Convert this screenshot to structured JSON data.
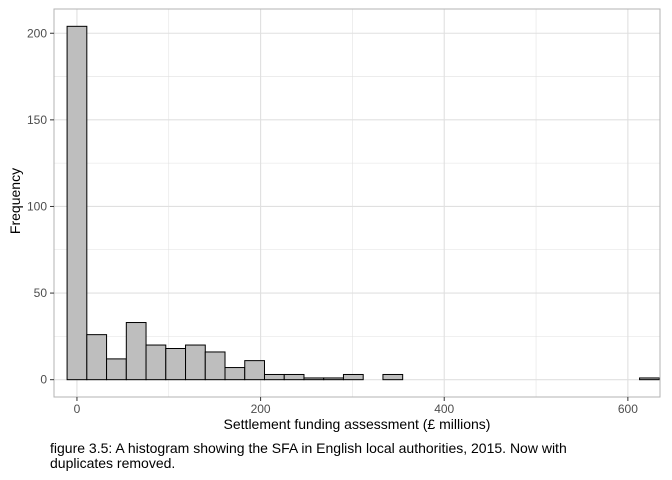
{
  "chart_data": {
    "type": "bar",
    "subtype": "histogram",
    "xlabel": "Settlement funding assessment (£ millions)",
    "ylabel": "Frequency",
    "xlim": [
      -25,
      635
    ],
    "ylim": [
      -10,
      214
    ],
    "xticks": [
      0,
      200,
      400,
      600
    ],
    "yticks": [
      0,
      50,
      100,
      150,
      200
    ],
    "grid": true,
    "bin_width": 21.5,
    "bins": [
      {
        "x0": -10.75,
        "x1": 10.75,
        "value": 204
      },
      {
        "x0": 10.75,
        "x1": 32.25,
        "value": 26
      },
      {
        "x0": 32.25,
        "x1": 53.75,
        "value": 12
      },
      {
        "x0": 53.75,
        "x1": 75.25,
        "value": 33
      },
      {
        "x0": 75.25,
        "x1": 96.75,
        "value": 20
      },
      {
        "x0": 96.75,
        "x1": 118.25,
        "value": 18
      },
      {
        "x0": 118.25,
        "x1": 139.75,
        "value": 20
      },
      {
        "x0": 139.75,
        "x1": 161.25,
        "value": 16
      },
      {
        "x0": 161.25,
        "x1": 182.75,
        "value": 7
      },
      {
        "x0": 182.75,
        "x1": 204.25,
        "value": 11
      },
      {
        "x0": 204.25,
        "x1": 225.75,
        "value": 3
      },
      {
        "x0": 225.75,
        "x1": 247.25,
        "value": 3
      },
      {
        "x0": 247.25,
        "x1": 268.75,
        "value": 1
      },
      {
        "x0": 268.75,
        "x1": 290.25,
        "value": 1
      },
      {
        "x0": 290.25,
        "x1": 311.75,
        "value": 3
      },
      {
        "x0": 311.75,
        "x1": 333.25,
        "value": 0
      },
      {
        "x0": 333.25,
        "x1": 354.75,
        "value": 3
      },
      {
        "x0": 354.75,
        "x1": 376.25,
        "value": 0
      },
      {
        "x0": 376.25,
        "x1": 397.75,
        "value": 0
      },
      {
        "x0": 397.75,
        "x1": 419.25,
        "value": 0
      },
      {
        "x0": 419.25,
        "x1": 440.75,
        "value": 0
      },
      {
        "x0": 440.75,
        "x1": 462.25,
        "value": 0
      },
      {
        "x0": 462.25,
        "x1": 483.75,
        "value": 0
      },
      {
        "x0": 483.75,
        "x1": 505.25,
        "value": 0
      },
      {
        "x0": 505.25,
        "x1": 526.75,
        "value": 0
      },
      {
        "x0": 526.75,
        "x1": 548.25,
        "value": 0
      },
      {
        "x0": 548.25,
        "x1": 569.75,
        "value": 0
      },
      {
        "x0": 569.75,
        "x1": 591.25,
        "value": 0
      },
      {
        "x0": 591.25,
        "x1": 612.75,
        "value": 0
      },
      {
        "x0": 612.75,
        "x1": 634.25,
        "value": 1
      }
    ],
    "colors": {
      "fill": "#bebebe",
      "stroke": "#000000",
      "grid": "#e0e0e0",
      "panel_border": "#b3b3b3"
    }
  },
  "caption": "figure 3.5: A histogram showing the SFA in English local authorities, 2015. Now with duplicates removed."
}
